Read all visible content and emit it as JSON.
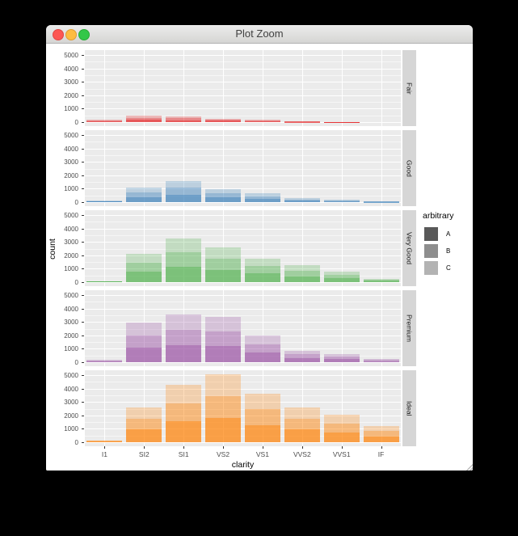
{
  "window": {
    "title": "Plot Zoom"
  },
  "chart_data": {
    "type": "bar",
    "stacked": true,
    "faceting": "rows by cut, shared x axis",
    "xlabel": "clarity",
    "ylabel": "count",
    "categories": [
      "I1",
      "SI2",
      "SI1",
      "VS2",
      "VS1",
      "VVS2",
      "VVS1",
      "IF"
    ],
    "y_ticks": [
      0,
      1000,
      2000,
      3000,
      4000,
      5000
    ],
    "ylim": [
      0,
      5250
    ],
    "grid": "white major+minor horizontal lines, white major vertical lines, panel background #EBEBEB",
    "panel_bg": "#EBEBEB",
    "facets": [
      {
        "label": "Fair",
        "color": "#E41A1C",
        "values": [
          210,
          466,
          408,
          261,
          170,
          69,
          17,
          9
        ]
      },
      {
        "label": "Good",
        "color": "#377EB8",
        "values": [
          96,
          1081,
          1560,
          978,
          648,
          286,
          186,
          71
        ]
      },
      {
        "label": "Very Good",
        "color": "#4DAF4A",
        "values": [
          84,
          2100,
          3240,
          2591,
          1775,
          1235,
          789,
          268
        ]
      },
      {
        "label": "Premium",
        "color": "#984EA3",
        "values": [
          205,
          2949,
          3575,
          3357,
          1989,
          870,
          616,
          230
        ]
      },
      {
        "label": "Ideal",
        "color": "#FF7F00",
        "values": [
          146,
          2598,
          4282,
          5071,
          3589,
          2606,
          2047,
          1212
        ]
      }
    ],
    "legend": {
      "title": "arbitrary",
      "position": "right",
      "entries": [
        {
          "label": "A",
          "alpha": 0.7,
          "swatch": "#595959"
        },
        {
          "label": "B",
          "alpha": 0.47,
          "swatch": "#8e8e8e"
        },
        {
          "label": "C",
          "alpha": 0.26,
          "swatch": "#b3b3b3"
        }
      ]
    },
    "stack_order_bottom_to_top": [
      "A",
      "B",
      "C"
    ],
    "stack_fractions": [
      0.36,
      0.32,
      0.32
    ]
  }
}
